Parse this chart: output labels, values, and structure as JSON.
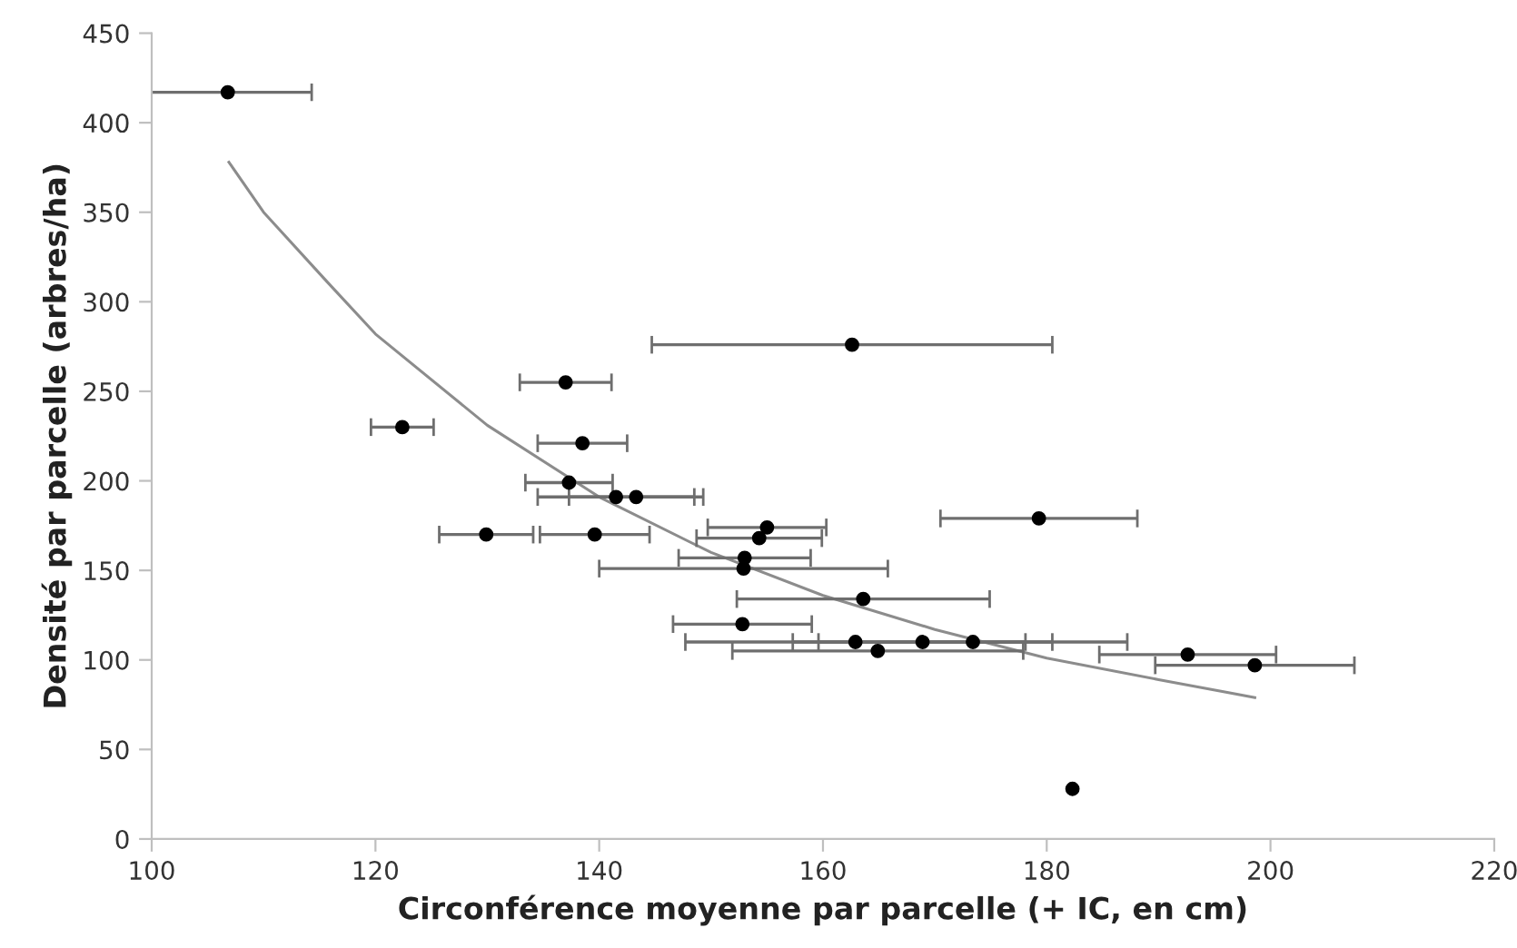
{
  "chart_data": {
    "type": "scatter",
    "xlabel": "Circonférence moyenne par parcelle (+ IC, en cm)",
    "ylabel": "Densité par parcelle (arbres/ha)",
    "xlim": [
      100,
      220
    ],
    "xticks": [
      100,
      120,
      140,
      160,
      180,
      200,
      220
    ],
    "ylim": [
      0,
      450
    ],
    "yticks": [
      0,
      50,
      100,
      150,
      200,
      250,
      300,
      350,
      400,
      450
    ],
    "grid": false,
    "series": [
      {
        "color": "#000000",
        "marker": "circle",
        "x": [
          106.8,
          122.4,
          137.0,
          162.6,
          138.5,
          137.3,
          141.5,
          143.3,
          129.9,
          139.6,
          155.0,
          154.3,
          153.0,
          152.9,
          163.6,
          152.8,
          162.9,
          168.9,
          173.4,
          164.9,
          179.3,
          192.6,
          198.6,
          182.3
        ],
        "values": [
          417,
          230,
          255,
          276,
          221,
          199,
          191,
          191,
          170,
          170,
          174,
          168,
          157,
          151,
          134,
          120,
          110,
          110,
          110,
          105,
          179,
          103,
          97,
          28
        ],
        "xerrors": [
          7.5,
          2.8,
          4.1,
          17.9,
          4,
          3.9,
          7,
          6,
          4.2,
          4.9,
          5.3,
          5.6,
          5.9,
          12.9,
          11.3,
          6.2,
          15.2,
          11.6,
          13.8,
          13,
          8.8,
          7.9,
          8.9,
          null
        ]
      },
      {
        "type": "line",
        "color": "#8c8c8c",
        "line_style": "solid",
        "marker": "none",
        "x": [
          106.9,
          110,
          115.7,
          120,
          130,
          140,
          150,
          160,
          170,
          180,
          190,
          198.6
        ],
        "values": [
          378,
          350,
          311,
          282,
          231,
          191,
          160,
          136,
          117,
          101,
          89,
          79
        ]
      }
    ]
  }
}
